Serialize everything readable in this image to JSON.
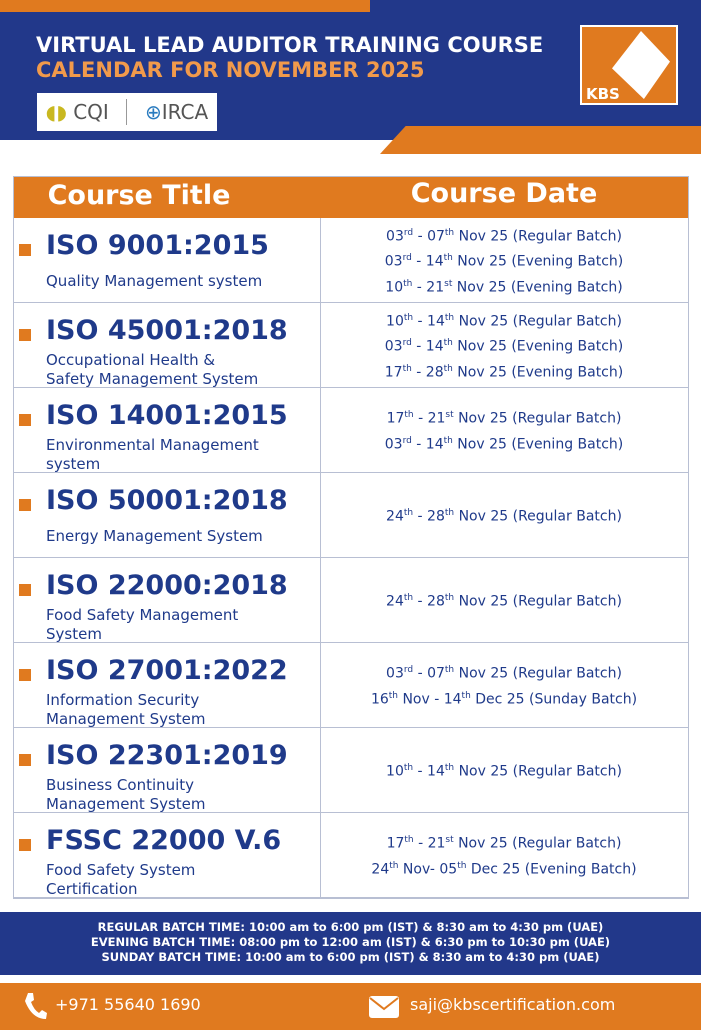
{
  "header": {
    "title": "VIRTUAL LEAD AUDITOR TRAINING COURSE",
    "subtitle": "CALENDAR FOR NOVEMBER 2025",
    "logos": [
      "CQI",
      "IRCA"
    ],
    "brand": "KBS"
  },
  "table": {
    "columns": [
      "Course Title",
      "Course Date"
    ],
    "rows": [
      {
        "code": "ISO 9001:2015",
        "name": [
          "Quality Management system"
        ],
        "dates": [
          [
            "03",
            "rd",
            " - 07",
            "th",
            " Nov 25 (Regular Batch)"
          ],
          [
            "03",
            "rd",
            " - 14",
            "th",
            " Nov 25 (Evening Batch)"
          ],
          [
            "10",
            "th",
            " - 21",
            "st",
            " Nov 25 (Evening Batch)"
          ]
        ]
      },
      {
        "code": "ISO 45001:2018",
        "name": [
          "Occupational Health &",
          "Safety Management System"
        ],
        "dates": [
          [
            "10",
            "th",
            " - 14",
            "th",
            " Nov 25 (Regular Batch)"
          ],
          [
            "03",
            "rd",
            " - 14",
            "th",
            " Nov 25 (Evening Batch)"
          ],
          [
            "17",
            "th",
            " - 28",
            "th",
            " Nov 25 (Evening Batch)"
          ]
        ]
      },
      {
        "code": "ISO 14001:2015",
        "name": [
          "Environmental Management",
          "system"
        ],
        "dates": [
          [
            "17",
            "th",
            " - 21",
            "st",
            " Nov 25 (Regular Batch)"
          ],
          [
            "03",
            "rd",
            " - 14",
            "th",
            " Nov 25 (Evening Batch)"
          ]
        ]
      },
      {
        "code": "ISO 50001:2018",
        "name": [
          "Energy Management System"
        ],
        "dates": [
          [
            "24",
            "th",
            " - 28",
            "th",
            " Nov 25 (Regular Batch)"
          ]
        ]
      },
      {
        "code": "ISO 22000:2018",
        "name": [
          "Food Safety Management",
          "System"
        ],
        "dates": [
          [
            "24",
            "th",
            " - 28",
            "th",
            " Nov 25 (Regular Batch)"
          ]
        ]
      },
      {
        "code": "ISO 27001:2022",
        "name": [
          "Information Security",
          "Management System"
        ],
        "dates": [
          [
            "03",
            "rd",
            " - 07",
            "th",
            " Nov 25 (Regular Batch)"
          ],
          [
            "16",
            "th",
            " Nov - 14",
            "th",
            " Dec 25 (Sunday Batch)"
          ]
        ]
      },
      {
        "code": "ISO 22301:2019",
        "name": [
          "Business Continuity",
          "Management System"
        ],
        "dates": [
          [
            "10",
            "th",
            " - 14",
            "th",
            " Nov 25 (Regular Batch)"
          ]
        ]
      },
      {
        "code": "FSSC 22000 V.6",
        "name": [
          "Food Safety System",
          "Certification"
        ],
        "dates": [
          [
            "17",
            "th",
            " - 21",
            "st",
            " Nov 25 (Regular Batch)"
          ],
          [
            "24",
            "th",
            " Nov- 05",
            "th",
            " Dec 25 (Evening Batch)"
          ]
        ]
      }
    ]
  },
  "footer": {
    "batch_times": [
      "REGULAR BATCH TIME: 10:00 am to 6:00 pm (IST) & 8:30 am to 4:30 pm (UAE)",
      "EVENING BATCH TIME: 08:00 pm to 12:00 am (IST) & 6:30 pm to 10:30 pm (UAE)",
      "SUNDAY BATCH TIME: 10:00 am to 6:00 pm (IST) & 8:30 am to 4:30 pm (UAE)"
    ],
    "phone": "+971 55640 1690",
    "email": "saji@kbscertification.com"
  }
}
